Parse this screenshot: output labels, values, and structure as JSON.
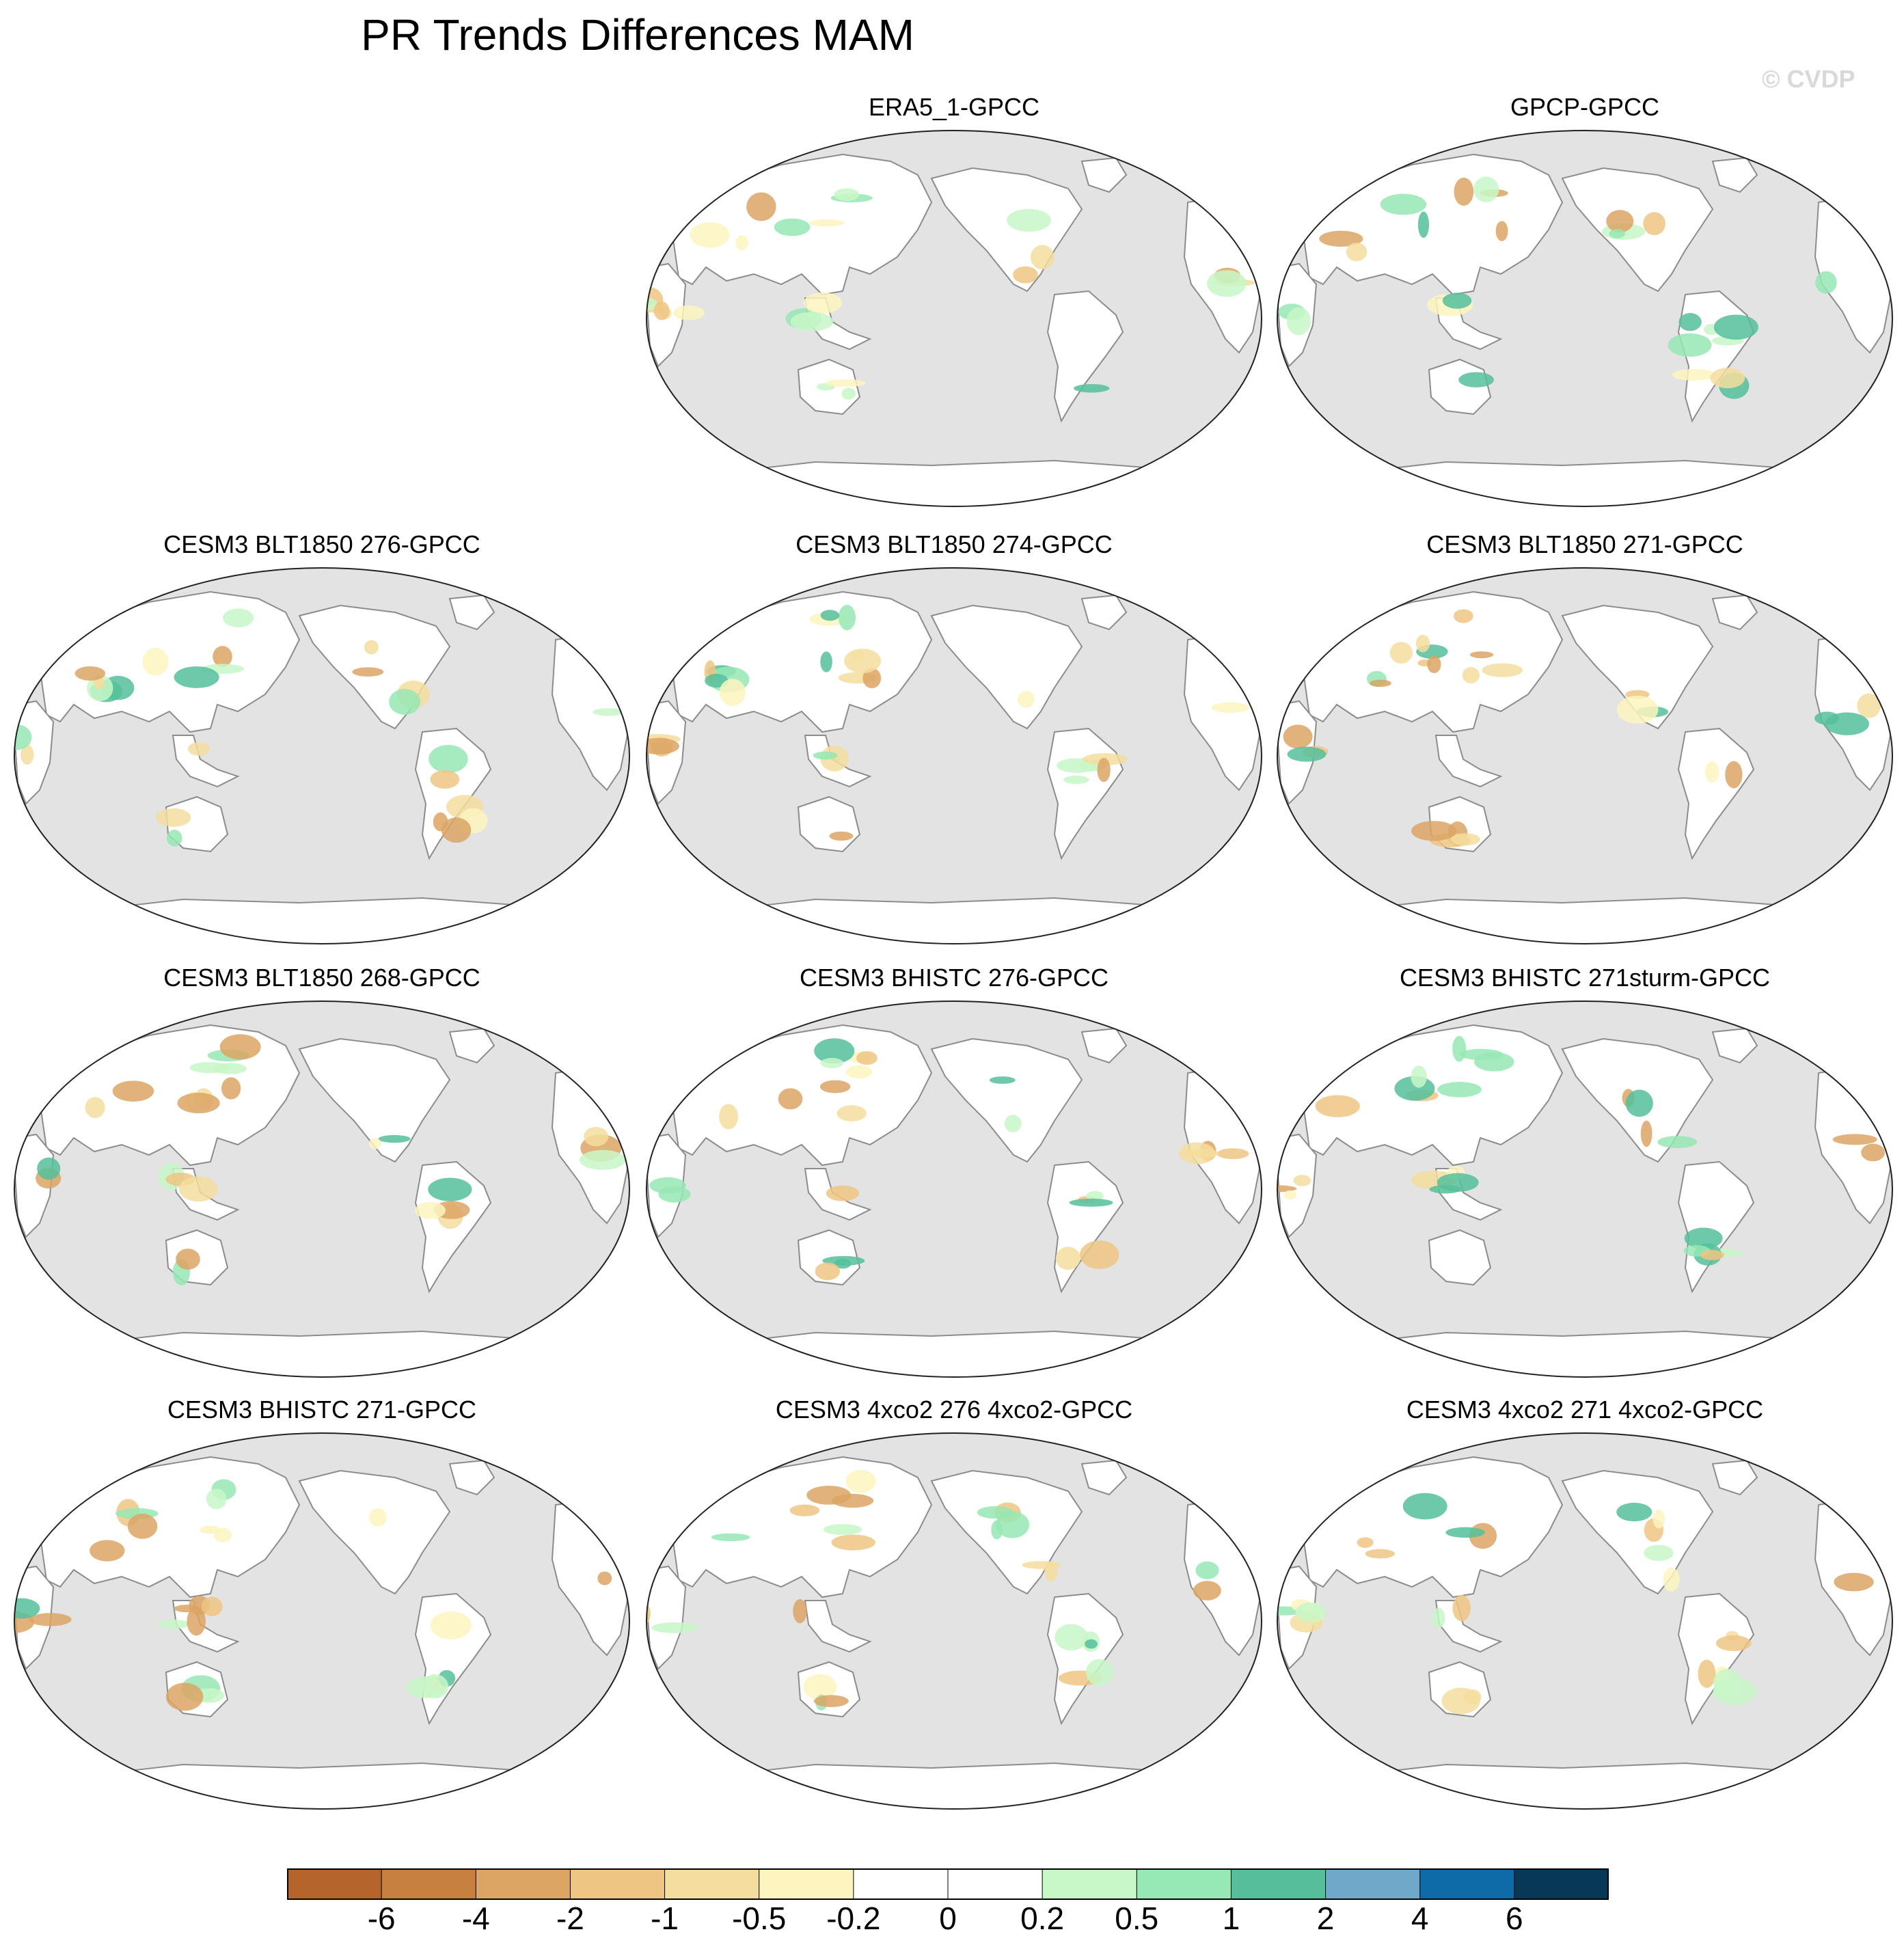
{
  "title": "PR Trends Differences MAM",
  "watermark": "© CVDP",
  "panels": [
    {
      "title": "ERA5_1-GPCC"
    },
    {
      "title": "GPCP-GPCC"
    },
    {
      "title": "CESM3 BLT1850 276-GPCC"
    },
    {
      "title": "CESM3 BLT1850 274-GPCC"
    },
    {
      "title": "CESM3 BLT1850 271-GPCC"
    },
    {
      "title": "CESM3 BLT1850 268-GPCC"
    },
    {
      "title": "CESM3 BHISTC 276-GPCC"
    },
    {
      "title": "CESM3 BHISTC 271sturm-GPCC"
    },
    {
      "title": "CESM3 BHISTC 271-GPCC"
    },
    {
      "title": "CESM3 4xco2 276 4xco2-GPCC"
    },
    {
      "title": "CESM3 4xco2 271 4xco2-GPCC"
    }
  ],
  "colorbar": {
    "colors": [
      "#b5652b",
      "#c88040",
      "#dca564",
      "#eec582",
      "#f4dd9e",
      "#fdf4c0",
      "#ffffff",
      "#ffffff",
      "#c8f7c8",
      "#96e8b4",
      "#55bf9b",
      "#6fa8c8",
      "#0f6aa8",
      "#083858"
    ],
    "labels": [
      "-6",
      "-4",
      "-2",
      "-1",
      "-0.5",
      "-0.2",
      "0",
      "0.2",
      "0.5",
      "1",
      "2",
      "4",
      "6"
    ]
  },
  "map_colors": {
    "ocean": "#e3e3e3",
    "land": "#ffffff",
    "coast": "#8c8c8c"
  }
}
